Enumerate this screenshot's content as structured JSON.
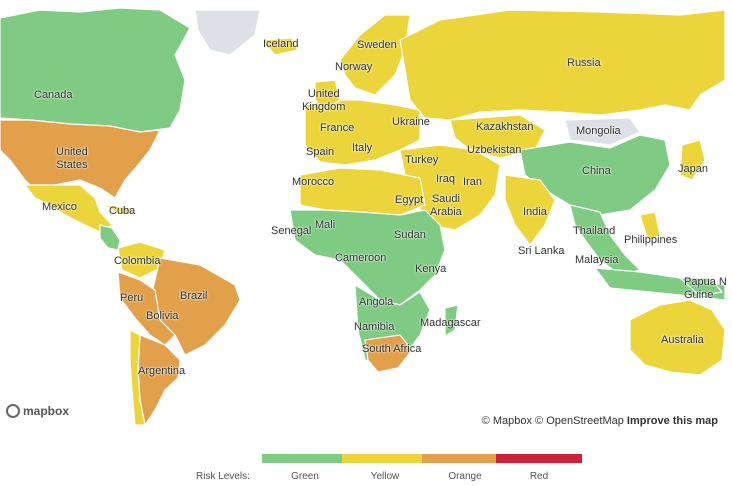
{
  "map": {
    "labels": {
      "iceland": "Iceland",
      "sweden": "Sweden",
      "norway": "Norway",
      "russia": "Russia",
      "canada": "Canada",
      "united_kingdom": "United\nKingdom",
      "united_states": "United\nStates",
      "france": "France",
      "ukraine": "Ukraine",
      "kazakhstan": "Kazakhstan",
      "mongolia": "Mongolia",
      "spain": "Spain",
      "italy": "Italy",
      "turkey": "Turkey",
      "uzbekistan": "Uzbekistan",
      "japan": "Japan",
      "china": "China",
      "morocco": "Morocco",
      "iraq": "Iraq",
      "iran": "Iran",
      "mexico": "Mexico",
      "cuba": "Cuba",
      "egypt": "Egypt",
      "saudi_arabia": "Saudi\nArabia",
      "india": "India",
      "mali": "Mali",
      "senegal": "Senegal",
      "sudan": "Sudan",
      "thailand": "Thailand",
      "philippines": "Philippines",
      "colombia": "Colombia",
      "sri_lanka": "Sri Lanka",
      "cameroon": "Cameroon",
      "malaysia": "Malaysia",
      "kenya": "Kenya",
      "papua_new_guinea": "Papua N\nGuine",
      "peru": "Peru",
      "brazil": "Brazil",
      "bolivia": "Bolivia",
      "angola": "Angola",
      "namibia": "Namibia",
      "madagascar": "Madagascar",
      "south_africa": "South Africa",
      "argentina": "Argentina",
      "australia": "Australia"
    },
    "risk_colors": {
      "green": "#7fcb83",
      "yellow": "#ecd53a",
      "orange": "#e2a04b",
      "red": "#d0213a",
      "no_data": "#dde0e6"
    }
  },
  "attribution": {
    "mapbox_logo": "mapbox",
    "copyright_mapbox": "© Mapbox",
    "copyright_osm": "© OpenStreetMap",
    "improve": "Improve this map"
  },
  "legend": {
    "title": "Risk Levels:",
    "items": [
      {
        "label": "Green",
        "color": "#7fcb83"
      },
      {
        "label": "Yellow",
        "color": "#ecd53a"
      },
      {
        "label": "Orange",
        "color": "#e2a04b"
      },
      {
        "label": "Red",
        "color": "#d0213a"
      }
    ]
  }
}
